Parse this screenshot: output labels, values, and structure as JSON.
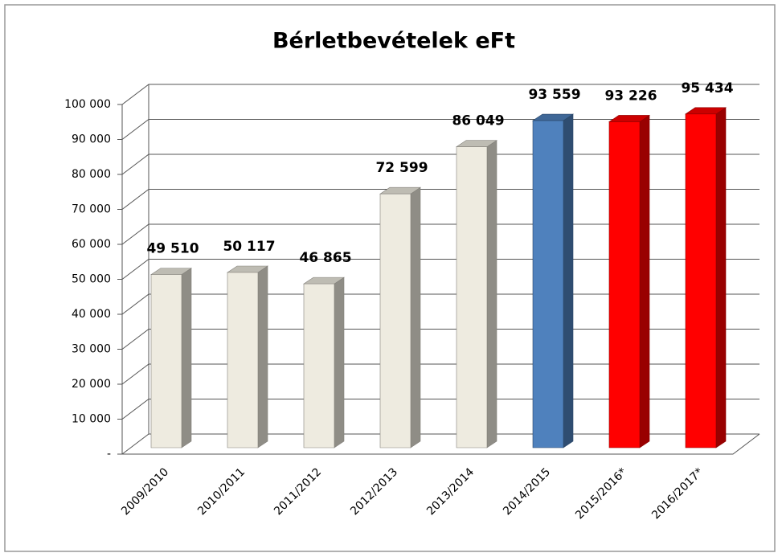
{
  "chart_data": {
    "type": "bar",
    "title": "Bérletbevételek eFt",
    "categories": [
      "2009/2010",
      "2010/2011",
      "2011/2012",
      "2012/2013",
      "2013/2014",
      "2014/2015",
      "2015/2016*",
      "2016/2017*"
    ],
    "values": [
      49510,
      50117,
      46865,
      72599,
      86049,
      93559,
      93226,
      95434
    ],
    "value_labels": [
      "49 510",
      "50 117",
      "46 865",
      "72 599",
      "86 049",
      "93 559",
      "93 226",
      "95 434"
    ],
    "colors": [
      "#eeebe0",
      "#eeebe0",
      "#eeebe0",
      "#eeebe0",
      "#eeebe0",
      "#4f81bd",
      "#ff0000",
      "#ff0000"
    ],
    "ylim": [
      0,
      100000
    ],
    "yticks": [
      {
        "value": 0,
        "label": "-"
      },
      {
        "value": 10000,
        "label": "10 000"
      },
      {
        "value": 20000,
        "label": "20 000"
      },
      {
        "value": 30000,
        "label": "30 000"
      },
      {
        "value": 40000,
        "label": "40 000"
      },
      {
        "value": 50000,
        "label": "50 000"
      },
      {
        "value": 60000,
        "label": "60 000"
      },
      {
        "value": 70000,
        "label": "70 000"
      },
      {
        "value": 80000,
        "label": "80 000"
      },
      {
        "value": 90000,
        "label": "90 000"
      },
      {
        "value": 100000,
        "label": "100 000"
      }
    ],
    "grid": true
  }
}
